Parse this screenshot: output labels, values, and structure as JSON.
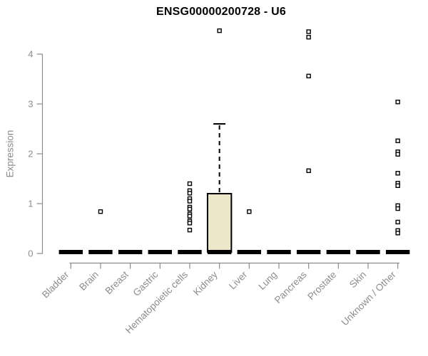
{
  "title": "ENSG00000200728 - U6",
  "y_axis": {
    "label": "Expression",
    "ticks": [
      0,
      1,
      2,
      3,
      4
    ],
    "range": [
      0,
      4.6
    ]
  },
  "colors": {
    "axis": "#8c8c8c",
    "tick_label": "#8c8c8c",
    "title_color": "#000000",
    "box_fill": "#ece6cb",
    "box_border": "#000000",
    "outlier": "#000000"
  },
  "chart_data": {
    "type": "boxplot",
    "title": "ENSG00000200728 - U6",
    "xlabel": "",
    "ylabel": "Expression",
    "ylim": [
      0,
      4.6
    ],
    "grid": false,
    "categories": [
      "Bladder",
      "Brain",
      "Breast",
      "Gastric",
      "Hematopoietic cells",
      "Kidney",
      "Liver",
      "Lung",
      "Pancreas",
      "Prostate",
      "Skin",
      "Unknown / Other"
    ],
    "boxes": [
      {
        "category": "Bladder",
        "q1": 0,
        "median": 0,
        "q3": 0,
        "whisker_low": 0,
        "whisker_high": 0,
        "outliers": []
      },
      {
        "category": "Brain",
        "q1": 0,
        "median": 0,
        "q3": 0,
        "whisker_low": 0,
        "whisker_high": 0,
        "outliers": [
          0.84
        ]
      },
      {
        "category": "Breast",
        "q1": 0,
        "median": 0,
        "q3": 0,
        "whisker_low": 0,
        "whisker_high": 0,
        "outliers": []
      },
      {
        "category": "Gastric",
        "q1": 0,
        "median": 0,
        "q3": 0,
        "whisker_low": 0,
        "whisker_high": 0,
        "outliers": []
      },
      {
        "category": "Hematopoietic cells",
        "q1": 0,
        "median": 0,
        "q3": 0,
        "whisker_low": 0,
        "whisker_high": 0,
        "outliers": [
          1.4,
          1.26,
          1.21,
          1.1,
          1.05,
          0.93,
          0.89,
          0.79,
          0.75,
          0.65,
          0.61,
          0.47
        ]
      },
      {
        "category": "Kidney",
        "q1": 0,
        "median": 0,
        "q3": 1.2,
        "whisker_low": 0,
        "whisker_high": 2.6,
        "outliers": [
          4.47
        ]
      },
      {
        "category": "Liver",
        "q1": 0,
        "median": 0,
        "q3": 0,
        "whisker_low": 0,
        "whisker_high": 0,
        "outliers": [
          0.84
        ]
      },
      {
        "category": "Lung",
        "q1": 0,
        "median": 0,
        "q3": 0,
        "whisker_low": 0,
        "whisker_high": 0,
        "outliers": []
      },
      {
        "category": "Pancreas",
        "q1": 0,
        "median": 0,
        "q3": 0,
        "whisker_low": 0,
        "whisker_high": 0,
        "outliers": [
          4.45,
          4.34,
          3.56,
          1.66
        ]
      },
      {
        "category": "Prostate",
        "q1": 0,
        "median": 0,
        "q3": 0,
        "whisker_low": 0,
        "whisker_high": 0,
        "outliers": []
      },
      {
        "category": "Skin",
        "q1": 0,
        "median": 0,
        "q3": 0,
        "whisker_low": 0,
        "whisker_high": 0,
        "outliers": []
      },
      {
        "category": "Unknown / Other",
        "q1": 0,
        "median": 0,
        "q3": 0,
        "whisker_low": 0,
        "whisker_high": 0,
        "outliers": [
          3.04,
          2.26,
          2.04,
          1.99,
          1.61,
          1.41,
          1.36,
          0.96,
          0.9,
          0.63,
          0.46,
          0.41
        ]
      }
    ]
  }
}
